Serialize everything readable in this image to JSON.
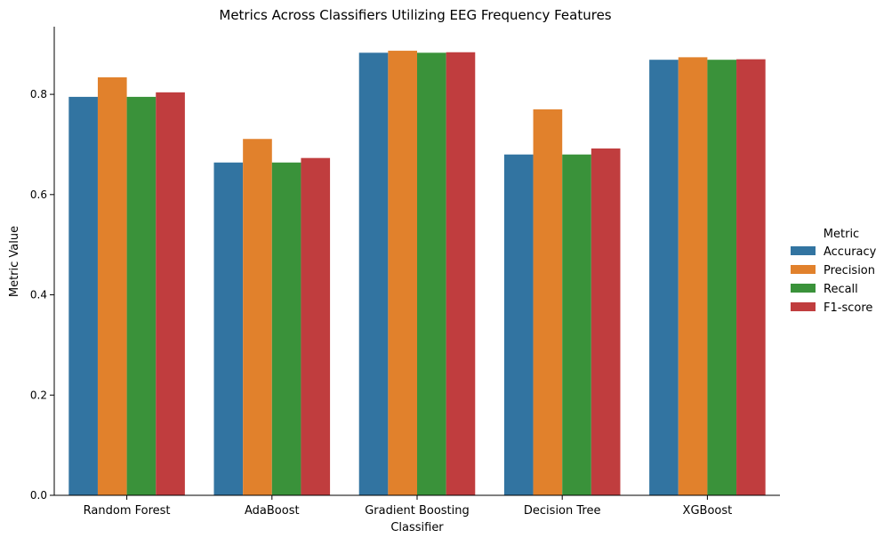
{
  "chart_data": {
    "type": "bar",
    "title": "Metrics Across Classifiers Utilizing EEG Frequency Features",
    "xlabel": "Classifier",
    "ylabel": "Metric Value",
    "categories": [
      "Random Forest",
      "AdaBoost",
      "Gradient Boosting",
      "Decision Tree",
      "XGBoost"
    ],
    "series": [
      {
        "name": "Accuracy",
        "color": "#3274a1",
        "values": [
          0.795,
          0.664,
          0.883,
          0.68,
          0.869
        ]
      },
      {
        "name": "Precision",
        "color": "#e1812c",
        "values": [
          0.834,
          0.711,
          0.887,
          0.77,
          0.874
        ]
      },
      {
        "name": "Recall",
        "color": "#3a923a",
        "values": [
          0.795,
          0.664,
          0.883,
          0.68,
          0.869
        ]
      },
      {
        "name": "F1-score",
        "color": "#c03d3e",
        "values": [
          0.804,
          0.673,
          0.884,
          0.692,
          0.87
        ]
      }
    ],
    "ylim": [
      0,
      0.935
    ],
    "yticks": [
      0.0,
      0.2,
      0.4,
      0.6,
      0.8
    ],
    "ytick_labels": [
      "0.0",
      "0.2",
      "0.4",
      "0.6",
      "0.8"
    ],
    "legend": {
      "title": "Metric",
      "position": "right"
    },
    "grid": false
  }
}
